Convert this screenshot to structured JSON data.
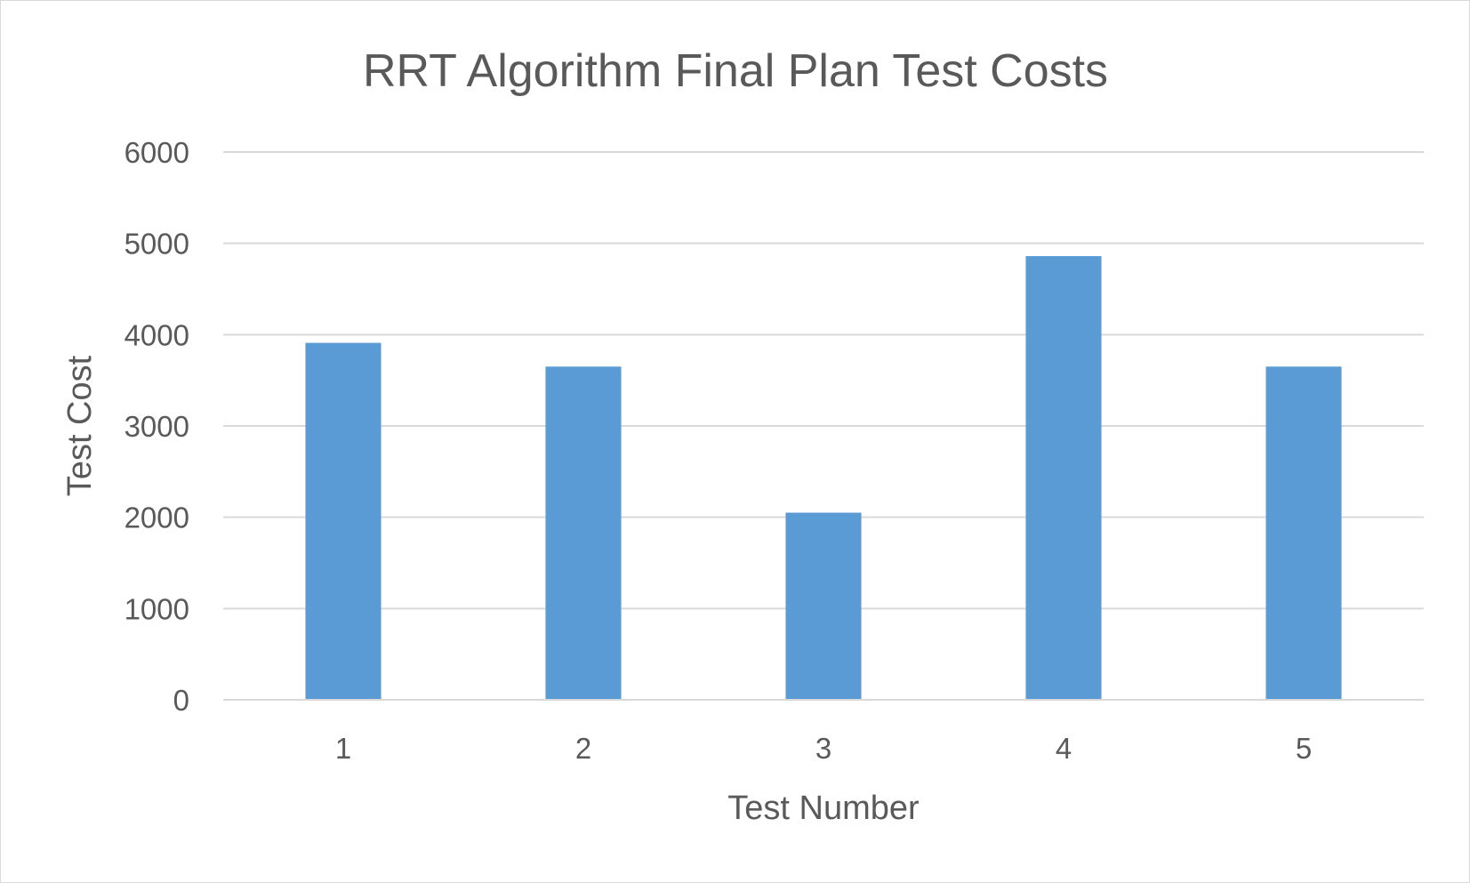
{
  "chart_data": {
    "type": "bar",
    "title": "RRT Algorithm Final Plan Test Costs",
    "xlabel": "Test Number",
    "ylabel": "Test Cost",
    "categories": [
      "1",
      "2",
      "3",
      "4",
      "5"
    ],
    "series": [
      {
        "values": [
          3910,
          3650,
          2050,
          4860,
          3650
        ]
      }
    ],
    "ylim": [
      0,
      6000
    ],
    "yticks": [
      "0",
      "1000",
      "2000",
      "3000",
      "4000",
      "5000",
      "6000"
    ],
    "grid": true,
    "legend": "none",
    "bar_color": "#5b9bd5",
    "grid_color": "#d9d9d9",
    "text_color": "#595959"
  }
}
